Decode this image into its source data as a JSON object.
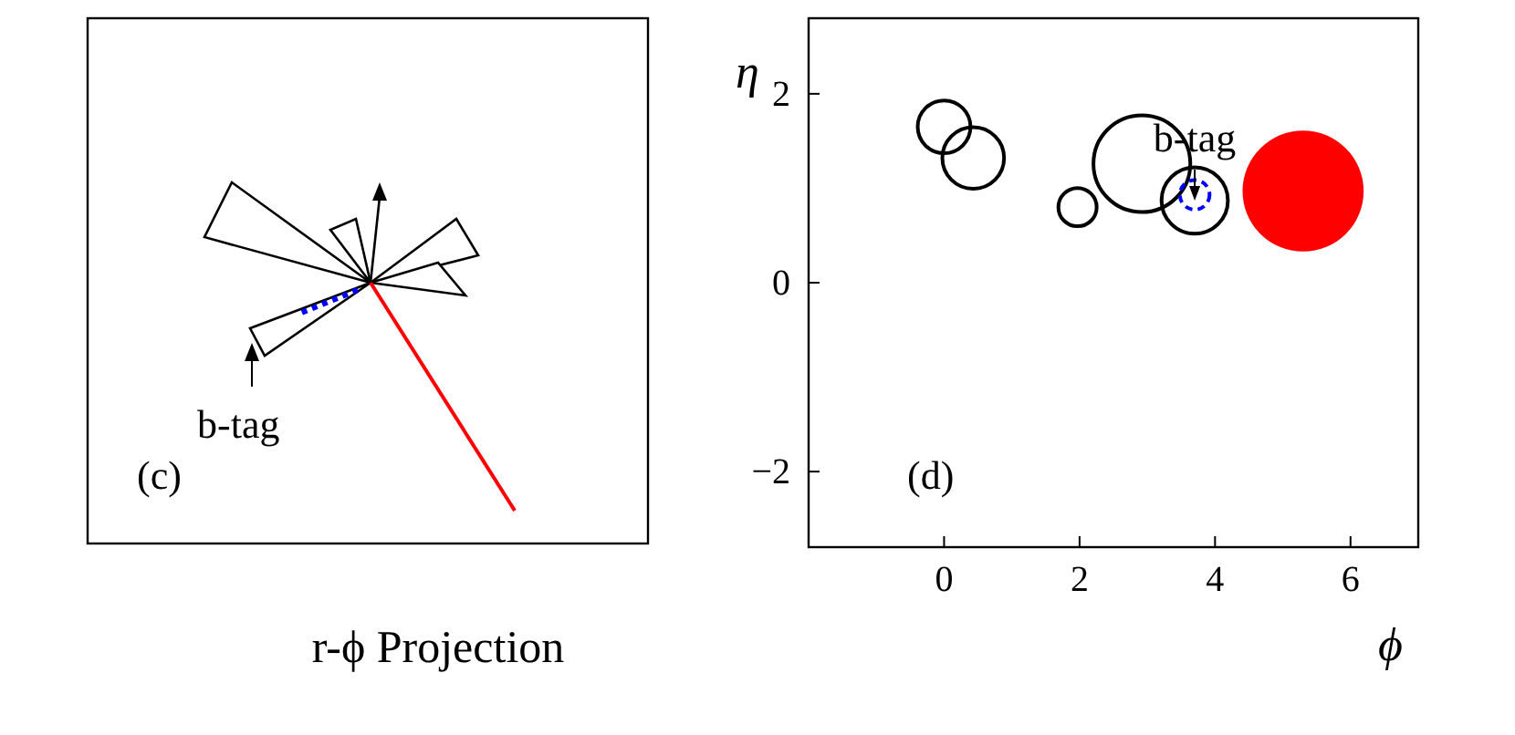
{
  "chart_data": [
    {
      "type": "other",
      "title": "r-ϕ Projection",
      "annotations": [
        "(c)",
        "b-tag"
      ]
    },
    {
      "type": "bubble",
      "xlabel": "ϕ",
      "ylabel": "η",
      "xlim": [
        -2,
        7
      ],
      "xticks": [
        0,
        2,
        4,
        6
      ],
      "ylim": [
        -2.8,
        2.8
      ],
      "yticks": [
        -2,
        0,
        2
      ],
      "annotations": [
        "(d)",
        {
          "text": "b-tag",
          "x": 3.7,
          "y": 0.87
        }
      ],
      "series": [
        {
          "color": "#000000",
          "line_style": "solid",
          "x": [
            0,
            0.43,
            1.97,
            2.92,
            3.7
          ],
          "values": [
            1.65,
            1.32,
            0.8,
            1.26,
            0.87
          ],
          "sizes": [
            0.19,
            0.26,
            0.1,
            0.64,
            0.3
          ]
        },
        {
          "color": "#0000ff",
          "line_style": "dashed",
          "x": [
            3.7
          ],
          "values": [
            0.93
          ],
          "sizes": [
            0.06
          ]
        },
        {
          "color": "#ff0000",
          "x": [
            5.3
          ],
          "values": [
            0.97
          ],
          "sizes": [
            1
          ]
        }
      ]
    }
  ]
}
